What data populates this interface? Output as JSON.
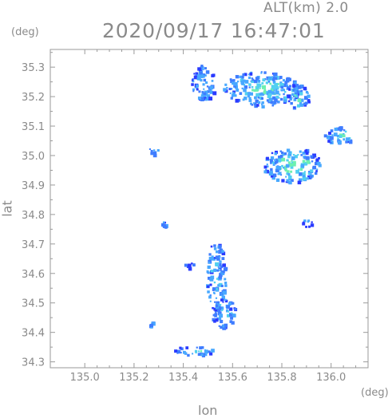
{
  "header": {
    "altitude_label": "ALT(km) 2.0",
    "timestamp": "2020/09/17 16:47:01"
  },
  "axes": {
    "y_unit": "(deg)",
    "x_unit": "(deg)",
    "y_title": "lat",
    "x_title": "lon"
  },
  "chart_data": {
    "type": "heatmap",
    "xlabel": "lon",
    "ylabel": "lat",
    "xlim": [
      134.86,
      136.15
    ],
    "ylim": [
      34.28,
      35.36
    ],
    "x_ticks": [
      "135.0",
      "135.2",
      "135.4",
      "135.6",
      "135.8",
      "136.0"
    ],
    "x_tick_values": [
      135.0,
      135.2,
      135.4,
      135.6,
      135.8,
      136.0
    ],
    "y_ticks": [
      "34.3",
      "34.4",
      "34.5",
      "34.6",
      "34.7",
      "34.8",
      "34.9",
      "35.0",
      "35.1",
      "35.2",
      "35.3"
    ],
    "y_tick_values": [
      34.3,
      34.4,
      34.5,
      34.6,
      34.7,
      34.8,
      34.9,
      35.0,
      35.1,
      35.2,
      35.3
    ],
    "grid": false,
    "colormap": [
      "#2a3bff",
      "#3f7dff",
      "#48a8ff",
      "#52d0f0",
      "#6ff0b0"
    ],
    "echo_regions": [
      {
        "lon": 135.48,
        "lat": 35.25,
        "rlon": 0.05,
        "rlat": 0.06,
        "level": 0.3
      },
      {
        "lon": 135.72,
        "lat": 35.23,
        "rlon": 0.16,
        "rlat": 0.06,
        "level": 0.6
      },
      {
        "lon": 135.86,
        "lat": 35.2,
        "rlon": 0.05,
        "rlat": 0.04,
        "level": 0.5
      },
      {
        "lon": 135.84,
        "lat": 34.97,
        "rlon": 0.12,
        "rlat": 0.06,
        "level": 0.7
      },
      {
        "lon": 136.03,
        "lat": 35.07,
        "rlon": 0.06,
        "rlat": 0.03,
        "level": 0.6
      },
      {
        "lon": 135.53,
        "lat": 34.59,
        "rlon": 0.04,
        "rlat": 0.12,
        "level": 0.3
      },
      {
        "lon": 135.56,
        "lat": 34.47,
        "rlon": 0.05,
        "rlat": 0.05,
        "level": 0.4
      },
      {
        "lon": 135.44,
        "lat": 34.34,
        "rlon": 0.09,
        "rlat": 0.015,
        "level": 0.5
      },
      {
        "lon": 135.28,
        "lat": 35.02,
        "rlon": 0.02,
        "rlat": 0.015,
        "level": 0.2
      },
      {
        "lon": 135.27,
        "lat": 34.43,
        "rlon": 0.01,
        "rlat": 0.01,
        "level": 0.2
      },
      {
        "lon": 135.42,
        "lat": 34.63,
        "rlon": 0.02,
        "rlat": 0.01,
        "level": 0.2
      },
      {
        "lon": 135.9,
        "lat": 34.78,
        "rlon": 0.02,
        "rlat": 0.02,
        "level": 0.2
      },
      {
        "lon": 135.32,
        "lat": 34.77,
        "rlon": 0.01,
        "rlat": 0.01,
        "level": 0.2
      }
    ]
  }
}
